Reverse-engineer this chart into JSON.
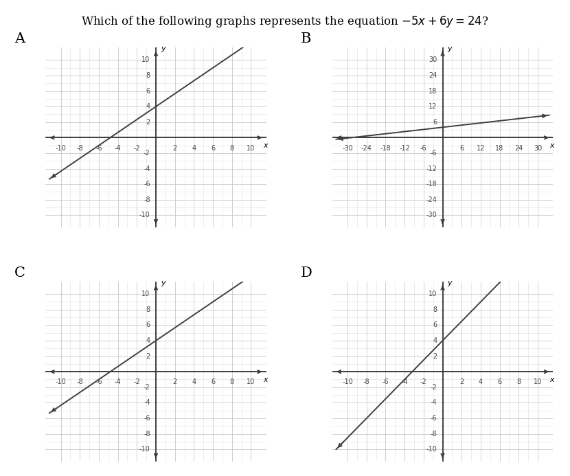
{
  "title": "Which of the following graphs represents the equation $-5x + 6y = 24$?",
  "panels": [
    {
      "label": "A",
      "xlim": [
        -10,
        10
      ],
      "ylim": [
        -10,
        10
      ],
      "xticks": [
        -10,
        -8,
        -6,
        -4,
        -2,
        2,
        4,
        6,
        8,
        10
      ],
      "yticks": [
        -10,
        -8,
        -6,
        -4,
        -2,
        2,
        4,
        6,
        8,
        10
      ],
      "slope": 0.8333,
      "intercept": 4,
      "line_x1": -10,
      "line_x2": 10
    },
    {
      "label": "B",
      "xlim": [
        -30,
        30
      ],
      "ylim": [
        -30,
        30
      ],
      "xticks": [
        -30,
        -24,
        -18,
        -12,
        -6,
        6,
        12,
        18,
        24,
        30
      ],
      "yticks": [
        -30,
        -24,
        -18,
        -12,
        -6,
        6,
        12,
        18,
        24,
        30
      ],
      "slope": 0.13889,
      "intercept": 4,
      "line_x1": -30,
      "line_x2": 30
    },
    {
      "label": "C",
      "xlim": [
        -10,
        10
      ],
      "ylim": [
        -10,
        10
      ],
      "xticks": [
        -10,
        -8,
        -6,
        -4,
        -2,
        2,
        4,
        6,
        8,
        10
      ],
      "yticks": [
        -10,
        -8,
        -6,
        -4,
        -2,
        2,
        4,
        6,
        8,
        10
      ],
      "slope": 0.8333,
      "intercept": 4,
      "line_x1": -10,
      "line_x2": 10
    },
    {
      "label": "D",
      "xlim": [
        -10,
        10
      ],
      "ylim": [
        -10,
        10
      ],
      "xticks": [
        -10,
        -8,
        -6,
        -4,
        -2,
        2,
        4,
        6,
        8,
        10
      ],
      "yticks": [
        -10,
        -8,
        -6,
        -4,
        -2,
        2,
        4,
        6,
        8,
        10
      ],
      "slope": 1.25,
      "intercept": 4,
      "line_x1": -10,
      "line_x2": 10
    }
  ],
  "bg_color": "#ffffff",
  "grid_color": "#cccccc",
  "grid_minor_color": "#e0e0e0",
  "line_color": "#404040",
  "axis_color": "#303030",
  "label_fontsize": 15,
  "tick_fontsize": 7,
  "page_bg": "#ffffff"
}
